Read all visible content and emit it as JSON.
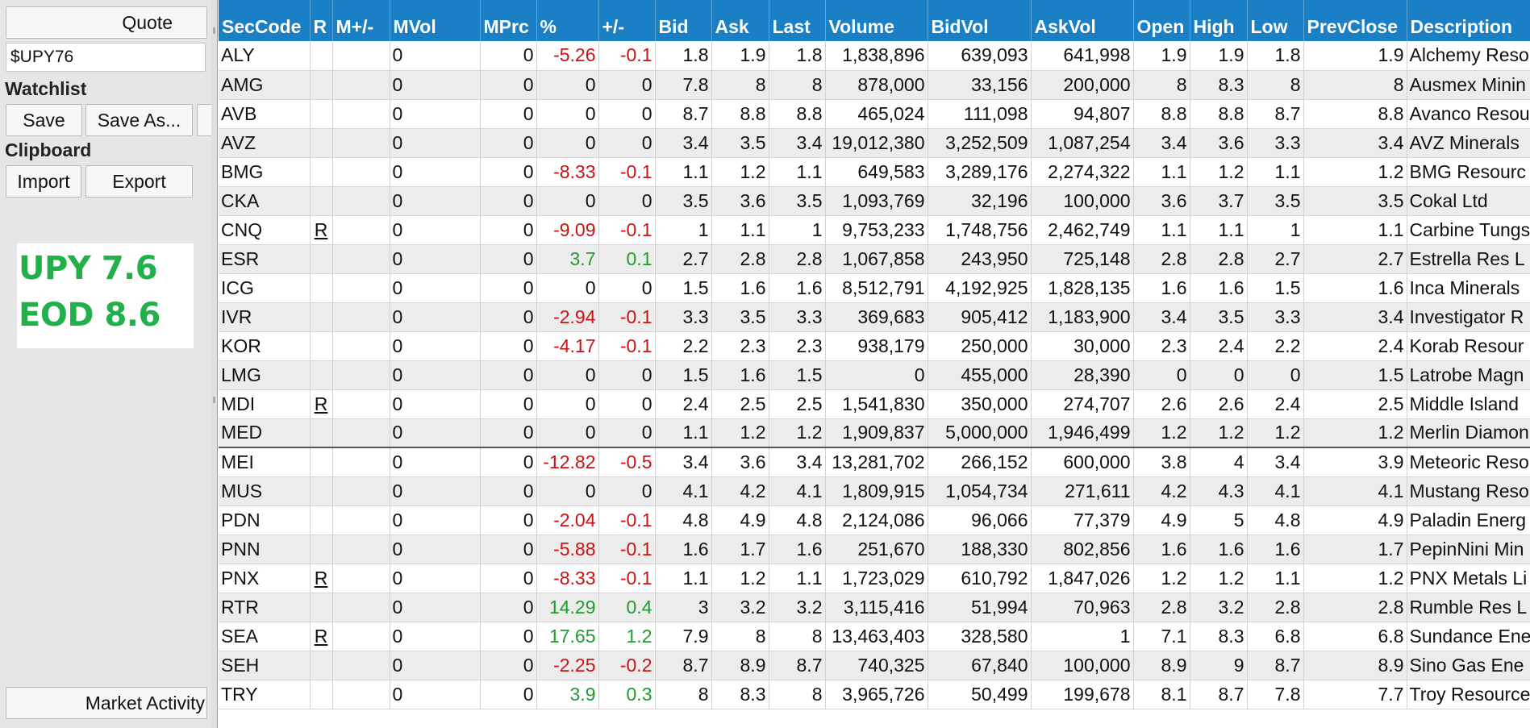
{
  "sidebar": {
    "quote_button": "Quote",
    "quote_input_value": "$UPY76",
    "watchlist_label": "Watchlist",
    "save_button": "Save",
    "save_as_button": "Save As...",
    "clipboard_label": "Clipboard",
    "import_button": "Import",
    "export_button": "Export",
    "note_lines": [
      "UPY 7.6",
      "EOD 8.6"
    ],
    "market_activity_button": "Market Activity"
  },
  "colors": {
    "header_bg": "#1a7fc4",
    "negative": "#cc1111",
    "positive": "#1e9c2c",
    "note_text": "#22b04b"
  },
  "columns": [
    "SecCode",
    "R",
    "M+/-",
    "MVol",
    "MPrc",
    "%",
    "+/-",
    "Bid",
    "Ask",
    "Last",
    "Volume",
    "BidVol",
    "AskVol",
    "Open",
    "High",
    "Low",
    "PrevClose",
    "Description"
  ],
  "rows": [
    [
      "ALY",
      "",
      "",
      "0",
      "0",
      "-5.26",
      "-0.1",
      "1.8",
      "1.9",
      "1.8",
      "1,838,896",
      "639,093",
      "641,998",
      "1.9",
      "1.9",
      "1.8",
      "1.9",
      "Alchemy Reso"
    ],
    [
      "AMG",
      "",
      "",
      "0",
      "0",
      "0",
      "0",
      "7.8",
      "8",
      "8",
      "878,000",
      "33,156",
      "200,000",
      "8",
      "8.3",
      "8",
      "8",
      "Ausmex Minin"
    ],
    [
      "AVB",
      "",
      "",
      "0",
      "0",
      "0",
      "0",
      "8.7",
      "8.8",
      "8.8",
      "465,024",
      "111,098",
      "94,807",
      "8.8",
      "8.8",
      "8.7",
      "8.8",
      "Avanco Resou"
    ],
    [
      "AVZ",
      "",
      "",
      "0",
      "0",
      "0",
      "0",
      "3.4",
      "3.5",
      "3.4",
      "19,012,380",
      "3,252,509",
      "1,087,254",
      "3.4",
      "3.6",
      "3.3",
      "3.4",
      "AVZ Minerals"
    ],
    [
      "BMG",
      "",
      "",
      "0",
      "0",
      "-8.33",
      "-0.1",
      "1.1",
      "1.2",
      "1.1",
      "649,583",
      "3,289,176",
      "2,274,322",
      "1.1",
      "1.2",
      "1.1",
      "1.2",
      "BMG Resourc"
    ],
    [
      "CKA",
      "",
      "",
      "0",
      "0",
      "0",
      "0",
      "3.5",
      "3.6",
      "3.5",
      "1,093,769",
      "32,196",
      "100,000",
      "3.6",
      "3.7",
      "3.5",
      "3.5",
      "Cokal Ltd"
    ],
    [
      "CNQ",
      "R",
      "",
      "0",
      "0",
      "-9.09",
      "-0.1",
      "1",
      "1.1",
      "1",
      "9,753,233",
      "1,748,756",
      "2,462,749",
      "1.1",
      "1.1",
      "1",
      "1.1",
      "Carbine Tungs"
    ],
    [
      "ESR",
      "",
      "",
      "0",
      "0",
      "3.7",
      "0.1",
      "2.7",
      "2.8",
      "2.8",
      "1,067,858",
      "243,950",
      "725,148",
      "2.8",
      "2.8",
      "2.7",
      "2.7",
      "Estrella Res L"
    ],
    [
      "ICG",
      "",
      "",
      "0",
      "0",
      "0",
      "0",
      "1.5",
      "1.6",
      "1.6",
      "8,512,791",
      "4,192,925",
      "1,828,135",
      "1.6",
      "1.6",
      "1.5",
      "1.6",
      "Inca Minerals"
    ],
    [
      "IVR",
      "",
      "",
      "0",
      "0",
      "-2.94",
      "-0.1",
      "3.3",
      "3.5",
      "3.3",
      "369,683",
      "905,412",
      "1,183,900",
      "3.4",
      "3.5",
      "3.3",
      "3.4",
      "Investigator R"
    ],
    [
      "KOR",
      "",
      "",
      "0",
      "0",
      "-4.17",
      "-0.1",
      "2.2",
      "2.3",
      "2.3",
      "938,179",
      "250,000",
      "30,000",
      "2.3",
      "2.4",
      "2.2",
      "2.4",
      "Korab Resour"
    ],
    [
      "LMG",
      "",
      "",
      "0",
      "0",
      "0",
      "0",
      "1.5",
      "1.6",
      "1.5",
      "0",
      "455,000",
      "28,390",
      "0",
      "0",
      "0",
      "1.5",
      "Latrobe Magn"
    ],
    [
      "MDI",
      "R",
      "",
      "0",
      "0",
      "0",
      "0",
      "2.4",
      "2.5",
      "2.5",
      "1,541,830",
      "350,000",
      "274,707",
      "2.6",
      "2.6",
      "2.4",
      "2.5",
      "Middle Island"
    ],
    [
      "MED",
      "",
      "",
      "0",
      "0",
      "0",
      "0",
      "1.1",
      "1.2",
      "1.2",
      "1,909,837",
      "5,000,000",
      "1,946,499",
      "1.2",
      "1.2",
      "1.2",
      "1.2",
      "Merlin Diamon"
    ],
    [
      "MEI",
      "",
      "",
      "0",
      "0",
      "-12.82",
      "-0.5",
      "3.4",
      "3.6",
      "3.4",
      "13,281,702",
      "266,152",
      "600,000",
      "3.8",
      "4",
      "3.4",
      "3.9",
      "Meteoric Reso"
    ],
    [
      "MUS",
      "",
      "",
      "0",
      "0",
      "0",
      "0",
      "4.1",
      "4.2",
      "4.1",
      "1,809,915",
      "1,054,734",
      "271,611",
      "4.2",
      "4.3",
      "4.1",
      "4.1",
      "Mustang Reso"
    ],
    [
      "PDN",
      "",
      "",
      "0",
      "0",
      "-2.04",
      "-0.1",
      "4.8",
      "4.9",
      "4.8",
      "2,124,086",
      "96,066",
      "77,379",
      "4.9",
      "5",
      "4.8",
      "4.9",
      "Paladin Energ"
    ],
    [
      "PNN",
      "",
      "",
      "0",
      "0",
      "-5.88",
      "-0.1",
      "1.6",
      "1.7",
      "1.6",
      "251,670",
      "188,330",
      "802,856",
      "1.6",
      "1.6",
      "1.6",
      "1.7",
      "PepinNini Min"
    ],
    [
      "PNX",
      "R",
      "",
      "0",
      "0",
      "-8.33",
      "-0.1",
      "1.1",
      "1.2",
      "1.1",
      "1,723,029",
      "610,792",
      "1,847,026",
      "1.2",
      "1.2",
      "1.1",
      "1.2",
      "PNX Metals Li"
    ],
    [
      "RTR",
      "",
      "",
      "0",
      "0",
      "14.29",
      "0.4",
      "3",
      "3.2",
      "3.2",
      "3,115,416",
      "51,994",
      "70,963",
      "2.8",
      "3.2",
      "2.8",
      "2.8",
      "Rumble Res L"
    ],
    [
      "SEA",
      "R",
      "",
      "0",
      "0",
      "17.65",
      "1.2",
      "7.9",
      "8",
      "8",
      "13,463,403",
      "328,580",
      "1",
      "7.1",
      "8.3",
      "6.8",
      "6.8",
      "Sundance Ene"
    ],
    [
      "SEH",
      "",
      "",
      "0",
      "0",
      "-2.25",
      "-0.2",
      "8.7",
      "8.9",
      "8.7",
      "740,325",
      "67,840",
      "100,000",
      "8.9",
      "9",
      "8.7",
      "8.9",
      "Sino Gas Ene"
    ],
    [
      "TRY",
      "",
      "",
      "0",
      "0",
      "3.9",
      "0.3",
      "8",
      "8.3",
      "8",
      "3,965,726",
      "50,499",
      "199,678",
      "8.1",
      "8.7",
      "7.8",
      "7.7",
      "Troy Resource"
    ]
  ]
}
